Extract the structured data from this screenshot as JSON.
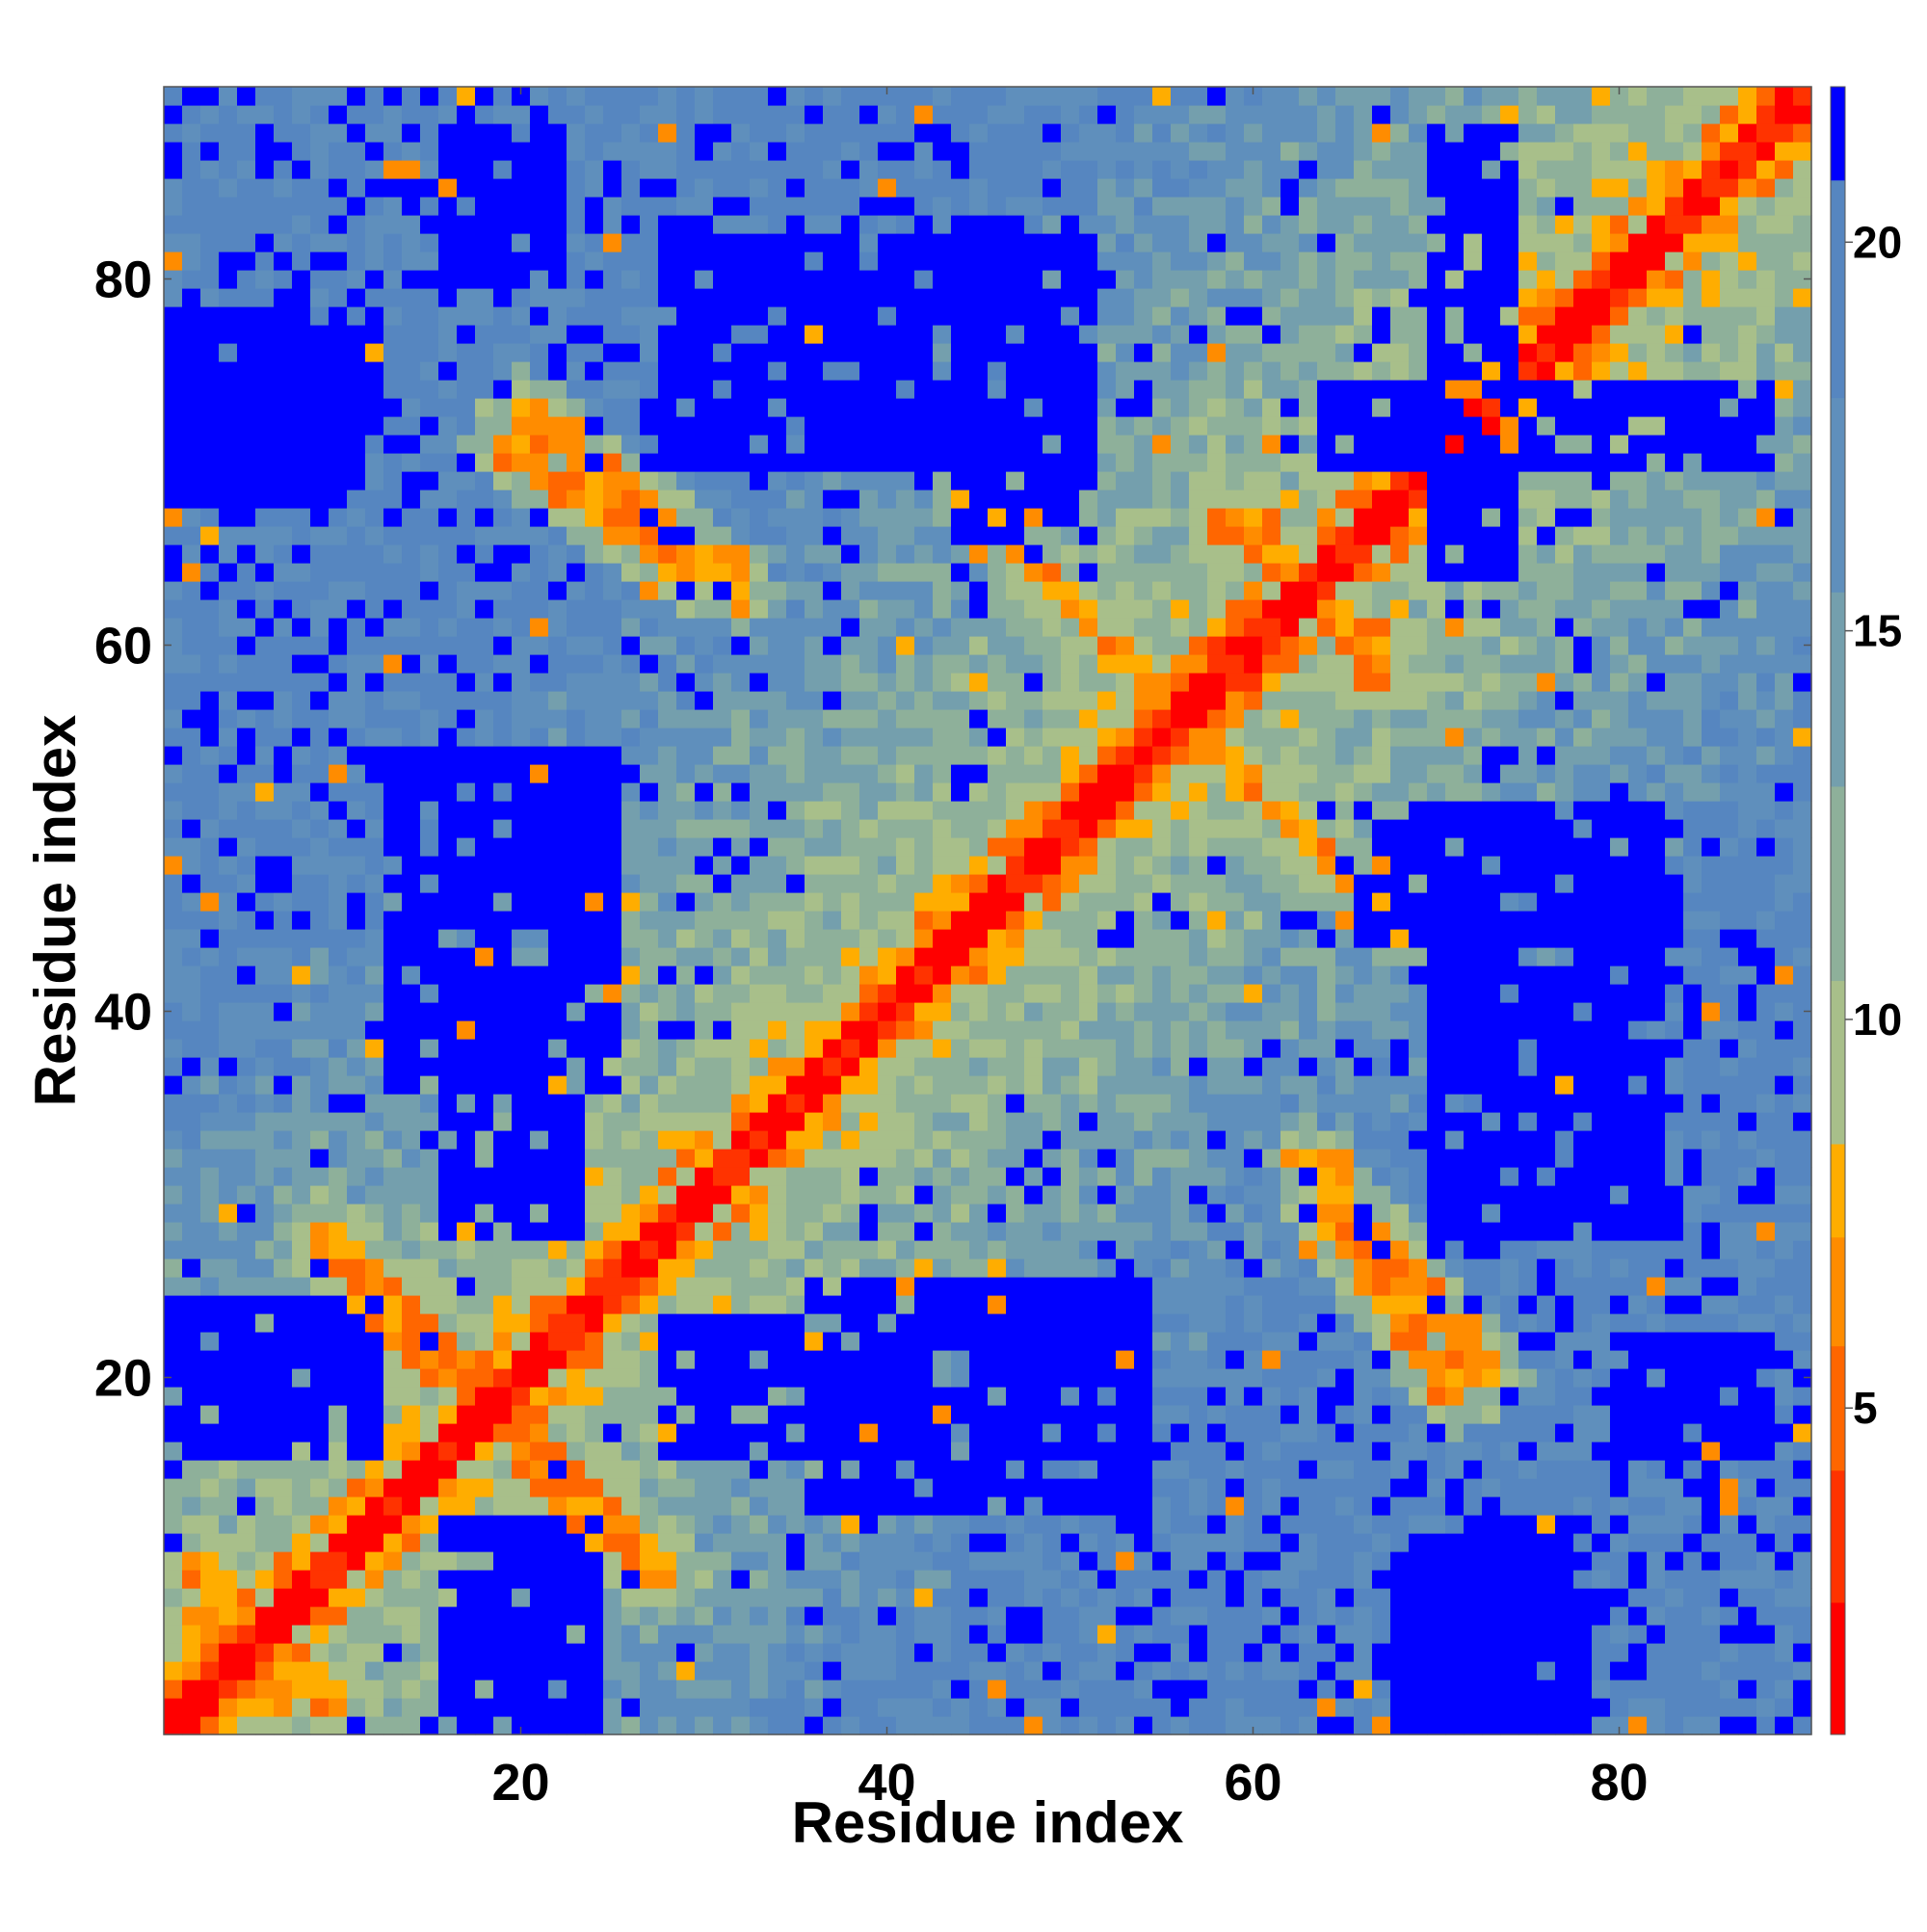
{
  "chart_data": {
    "type": "heatmap",
    "xlabel": "Residue index",
    "ylabel": "Residue index",
    "x_range": [
      1,
      90
    ],
    "y_range": [
      1,
      90
    ],
    "xticks": [
      20,
      40,
      60,
      80
    ],
    "yticks": [
      20,
      40,
      60,
      80
    ],
    "colorbar": {
      "min": 0.8,
      "max": 22,
      "ticks": [
        5,
        10,
        15,
        20
      ],
      "bands": [
        {
          "upto": 2.5,
          "color": "#ff0000"
        },
        {
          "upto": 4.2,
          "color": "#ff3300"
        },
        {
          "upto": 5.8,
          "color": "#ff6600"
        },
        {
          "upto": 7.2,
          "color": "#ff8c00"
        },
        {
          "upto": 8.4,
          "color": "#ffad00"
        },
        {
          "upto": 10.5,
          "color": "#a8bf8a"
        },
        {
          "upto": 13,
          "color": "#8eb09a"
        },
        {
          "upto": 15.5,
          "color": "#749fad"
        },
        {
          "upto": 18,
          "color": "#5f8fbc"
        },
        {
          "upto": 20.8,
          "color": "#5686c0"
        },
        {
          "upto": 22,
          "color": "#0000ff"
        }
      ]
    },
    "secondary_structure_contacts": [
      {
        "from": [
          2,
          7
        ],
        "to": [
          10,
          2
        ],
        "value": 7
      },
      {
        "from": [
          11,
          24
        ],
        "to": [
          19,
          18
        ],
        "value": 6.5
      },
      {
        "from": [
          20,
          17
        ],
        "to": [
          28,
          9
        ],
        "value": 6.5
      },
      {
        "from": [
          19,
          71
        ],
        "to": [
          29,
          64
        ],
        "value": 6.5
      },
      {
        "from": [
          57,
          55
        ],
        "to": [
          69,
          44
        ],
        "value": 7
      },
      {
        "from": [
          60,
          67
        ],
        "to": [
          67,
          58
        ],
        "value": 6.5
      },
      {
        "from": [
          63,
          32
        ],
        "to": [
          73,
          20
        ],
        "value": 6.5
      },
      {
        "from": [
          26,
          26
        ],
        "to": [
          41,
          41
        ],
        "value": 6
      }
    ],
    "far_contact_blocks": [
      {
        "x": [
          16,
          22
        ],
        "y": [
          1,
          12
        ]
      },
      {
        "x": [
          16,
          23
        ],
        "y": [
          28,
          51
        ]
      },
      {
        "x": [
          16,
          22
        ],
        "y": [
          80,
          88
        ]
      },
      {
        "x": [
          36,
          54
        ],
        "y": [
          13,
          25
        ]
      },
      {
        "x": [
          44,
          51
        ],
        "y": [
          66,
          83
        ]
      },
      {
        "x": [
          72,
          78
        ],
        "y": [
          1,
          12
        ]
      },
      {
        "x": [
          70,
          82
        ],
        "y": [
          28,
          51
        ]
      },
      {
        "x": [
          70,
          74
        ],
        "y": [
          64,
          88
        ]
      },
      {
        "x": [
          1,
          12
        ],
        "y": [
          17,
          24
        ]
      },
      {
        "x": [
          1,
          11
        ],
        "y": [
          68,
          78
        ]
      }
    ]
  }
}
